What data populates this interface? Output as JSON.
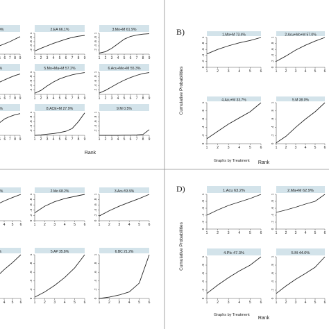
{
  "figure": {
    "panel_labels": [
      "B)",
      "D)"
    ],
    "colors": {
      "strip": "#d3e3ea",
      "line": "#222222",
      "axis": "#555555",
      "divider": "#8c8c8c",
      "text": "#222222"
    }
  },
  "chart_data": [
    {
      "id": "panel-A",
      "type": "line",
      "label": "",
      "xlabel": "Rank",
      "ylabel": "",
      "footer": "",
      "x_ticks": [
        "1",
        "2",
        "3",
        "4",
        "5",
        "6",
        "7",
        "8",
        "9"
      ],
      "y_ticks": [
        ".2",
        ".4",
        ".6",
        ".8",
        "1"
      ],
      "xlim": [
        1,
        9
      ],
      "ylim": [
        0,
        1
      ],
      "subplots": [
        {
          "title": "5.0%",
          "values": [
            0.05,
            0.12,
            0.2,
            0.3,
            0.4,
            0.5,
            0.6,
            0.72,
            0.84
          ]
        },
        {
          "title": "2.EA 66.1%",
          "values": [
            0.15,
            0.28,
            0.4,
            0.52,
            0.62,
            0.72,
            0.8,
            0.86,
            0.9
          ]
        },
        {
          "title": "3.Mo+M 61.9%",
          "values": [
            0.05,
            0.12,
            0.28,
            0.5,
            0.72,
            0.85,
            0.92,
            0.96,
            0.98
          ]
        },
        {
          "title": "0%",
          "values": [
            0.1,
            0.2,
            0.32,
            0.44,
            0.55,
            0.66,
            0.76,
            0.85,
            0.92
          ]
        },
        {
          "title": "5.Mo+Ma+M 57.2%",
          "values": [
            0.05,
            0.18,
            0.38,
            0.56,
            0.7,
            0.8,
            0.88,
            0.94,
            0.98
          ]
        },
        {
          "title": "6.Acu+Mo+M 55.3%",
          "values": [
            0.06,
            0.18,
            0.34,
            0.5,
            0.64,
            0.76,
            0.86,
            0.94,
            0.98
          ]
        },
        {
          "title": ".1%",
          "values": [
            0.0,
            0.05,
            0.12,
            0.3,
            0.55,
            0.72,
            0.82,
            0.9,
            0.95
          ]
        },
        {
          "title": "8.ACE+M 27.9%",
          "values": [
            0.0,
            0.02,
            0.05,
            0.08,
            0.12,
            0.18,
            0.3,
            0.6,
            0.98
          ]
        },
        {
          "title": "9.M 0.5%",
          "values": [
            0.0,
            0.0,
            0.0,
            0.0,
            0.01,
            0.01,
            0.02,
            0.04,
            0.25
          ]
        }
      ]
    },
    {
      "id": "panel-B",
      "type": "line",
      "label": "B)",
      "xlabel": "Rank",
      "ylabel": "Cumulative Probabilities",
      "footer": "Graphs by Treatment",
      "x_ticks": [
        "1",
        "2",
        "3",
        "4",
        "5",
        "6"
      ],
      "y_ticks": [
        "0",
        ".2",
        ".4",
        ".6",
        ".8",
        "1"
      ],
      "xlim": [
        1,
        6
      ],
      "ylim": [
        0,
        1
      ],
      "subplots": [
        {
          "title": "1.Mo+M 73.4%",
          "values": [
            0.45,
            0.6,
            0.72,
            0.82,
            0.9,
            1.0
          ]
        },
        {
          "title": "2.Acu+Mo+M 57.0%",
          "values": [
            0.2,
            0.38,
            0.58,
            0.74,
            0.88,
            1.0
          ]
        },
        {
          "title": "4.Acu+M 33.7%",
          "values": [
            0.12,
            0.3,
            0.48,
            0.63,
            0.78,
            1.0
          ]
        },
        {
          "title": "5.M 38.0%",
          "values": [
            0.02,
            0.18,
            0.4,
            0.6,
            0.78,
            1.0
          ]
        }
      ]
    },
    {
      "id": "panel-C",
      "type": "line",
      "label": "",
      "xlabel": "Rank",
      "ylabel": "",
      "footer": "",
      "x_ticks": [
        "1",
        "2",
        "3",
        "4",
        "5",
        "6"
      ],
      "y_ticks": [
        "0",
        ".2",
        ".4",
        ".6",
        ".8",
        "1"
      ],
      "xlim": [
        1,
        6
      ],
      "ylim": [
        0,
        1
      ],
      "subplots": [
        {
          "title": ".1%",
          "values": [
            0.15,
            0.4,
            0.6,
            0.75,
            0.88,
            1.0
          ]
        },
        {
          "title": "2.Mo 68.2%",
          "values": [
            0.3,
            0.55,
            0.72,
            0.84,
            0.92,
            1.0
          ]
        },
        {
          "title": "3.Acu 53.9%",
          "values": [
            0.18,
            0.38,
            0.55,
            0.7,
            0.84,
            1.0
          ]
        },
        {
          "title": "%",
          "values": [
            0.1,
            0.28,
            0.48,
            0.66,
            0.82,
            1.0
          ]
        },
        {
          "title": "5.AP 35.8%",
          "values": [
            0.03,
            0.15,
            0.3,
            0.48,
            0.7,
            1.0
          ]
        },
        {
          "title": "6.BC 21.2%",
          "values": [
            0.0,
            0.03,
            0.08,
            0.15,
            0.35,
            1.0
          ]
        }
      ]
    },
    {
      "id": "panel-D",
      "type": "line",
      "label": "D)",
      "xlabel": "Rank",
      "ylabel": "Cumulative Probabilities",
      "footer": "Graphs by Treatment",
      "x_ticks": [
        "1",
        "2",
        "3",
        "4",
        "5",
        "6"
      ],
      "y_ticks": [
        "0",
        ".2",
        ".4",
        ".6",
        ".8",
        "1"
      ],
      "xlim": [
        1,
        6
      ],
      "ylim": [
        0,
        1
      ],
      "subplots": [
        {
          "title": "1.Acu 63.2%",
          "values": [
            0.4,
            0.55,
            0.68,
            0.78,
            0.88,
            1.0
          ]
        },
        {
          "title": "2.Ma+M 62.9%",
          "values": [
            0.48,
            0.55,
            0.63,
            0.72,
            0.8,
            1.0
          ]
        },
        {
          "title": "4.Plc 47.3%",
          "values": [
            0.12,
            0.32,
            0.5,
            0.66,
            0.8,
            1.0
          ]
        },
        {
          "title": "5.M 44.0%",
          "values": [
            0.12,
            0.3,
            0.46,
            0.6,
            0.75,
            1.0
          ]
        }
      ]
    }
  ]
}
